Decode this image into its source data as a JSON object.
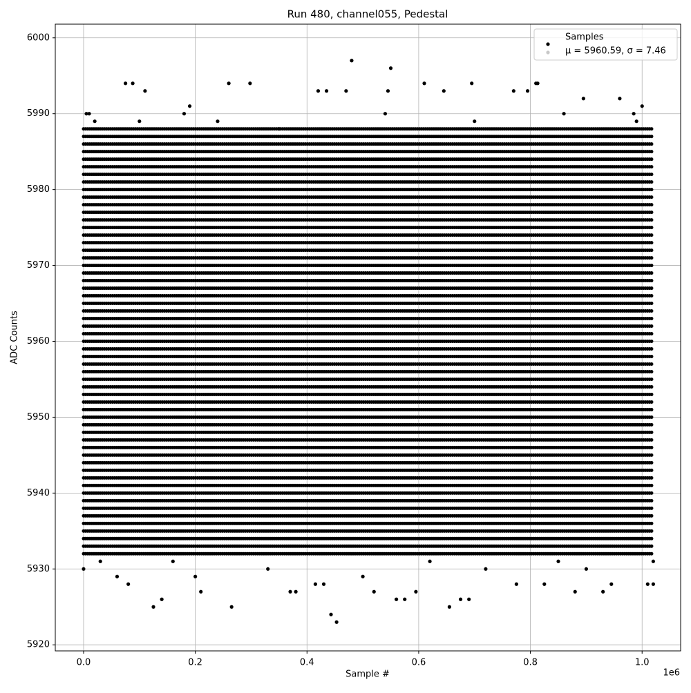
{
  "chart_data": {
    "type": "scatter",
    "title": "Run 480, channel055, Pedestal",
    "x_label": "Sample #",
    "y_label": "ADC Counts",
    "x_offset_label": "1e6",
    "xlim": [
      -50700,
      1069000
    ],
    "ylim": [
      5919.2,
      6001.8
    ],
    "xticks": [
      {
        "value": 0,
        "label": "0.0"
      },
      {
        "value": 200000,
        "label": "0.2"
      },
      {
        "value": 400000,
        "label": "0.4"
      },
      {
        "value": 600000,
        "label": "0.6"
      },
      {
        "value": 800000,
        "label": "0.8"
      },
      {
        "value": 1000000,
        "label": "1.0"
      }
    ],
    "yticks": [
      5920,
      5930,
      5940,
      5950,
      5960,
      5970,
      5980,
      5990,
      6000
    ],
    "grid": true,
    "legend_position": "upper right",
    "series": [
      {
        "name": "Samples",
        "color": "#000000",
        "x": [
          0,
          5000,
          10000,
          125000,
          140000,
          265000,
          443000,
          453000,
          480000,
          550000,
          260000,
          298000,
          75000,
          88000,
          110000,
          610000,
          695000,
          810000,
          813000,
          655000,
          675000,
          690000,
          560000,
          575000,
          595000,
          520000,
          880000,
          930000,
          1010000,
          1020000,
          200000,
          210000,
          80000,
          775000,
          825000,
          415000,
          430000,
          370000,
          380000,
          900000,
          945000,
          420000,
          435000,
          470000,
          545000,
          645000,
          770000,
          795000,
          895000,
          960000,
          1000000,
          985000,
          180000,
          190000,
          30000,
          60000,
          160000,
          330000,
          500000,
          620000,
          720000,
          850000,
          1020000,
          20000,
          100000,
          240000,
          350000,
          540000,
          700000,
          860000,
          990000
        ],
        "y": [
          5930,
          5990,
          5990,
          5925,
          5926,
          5925,
          5924,
          5923,
          5997,
          5996,
          5994,
          5994,
          5994,
          5994,
          5993,
          5994,
          5994,
          5994,
          5994,
          5925,
          5926,
          5926,
          5926,
          5926,
          5927,
          5927,
          5927,
          5927,
          5928,
          5928,
          5929,
          5927,
          5928,
          5928,
          5928,
          5928,
          5928,
          5927,
          5927,
          5930,
          5928,
          5993,
          5993,
          5993,
          5993,
          5993,
          5993,
          5993,
          5992,
          5992,
          5991,
          5990,
          5990,
          5991,
          5931,
          5929,
          5931,
          5930,
          5929,
          5931,
          5930,
          5931,
          5931,
          5989,
          5989,
          5989,
          5988,
          5990,
          5989,
          5990,
          5989
        ]
      },
      {
        "name": "μ = 5960.59, σ = 7.46",
        "color": "#c8c8c8"
      }
    ],
    "dense_rows": {
      "y": [
        5932,
        5933,
        5934,
        5935,
        5936,
        5937,
        5938,
        5939,
        5940,
        5941,
        5942,
        5943,
        5944,
        5945,
        5946,
        5947,
        5948,
        5949,
        5950,
        5951,
        5952,
        5953,
        5954,
        5955,
        5956,
        5957,
        5958,
        5959,
        5960,
        5961,
        5962,
        5963,
        5964,
        5965,
        5966,
        5967,
        5968,
        5969,
        5970,
        5971,
        5972,
        5973,
        5974,
        5975,
        5976,
        5977,
        5978,
        5979,
        5980,
        5981,
        5982,
        5983,
        5984,
        5985,
        5986,
        5987,
        5988
      ],
      "x_from": 0,
      "x_to": 1020000
    }
  }
}
